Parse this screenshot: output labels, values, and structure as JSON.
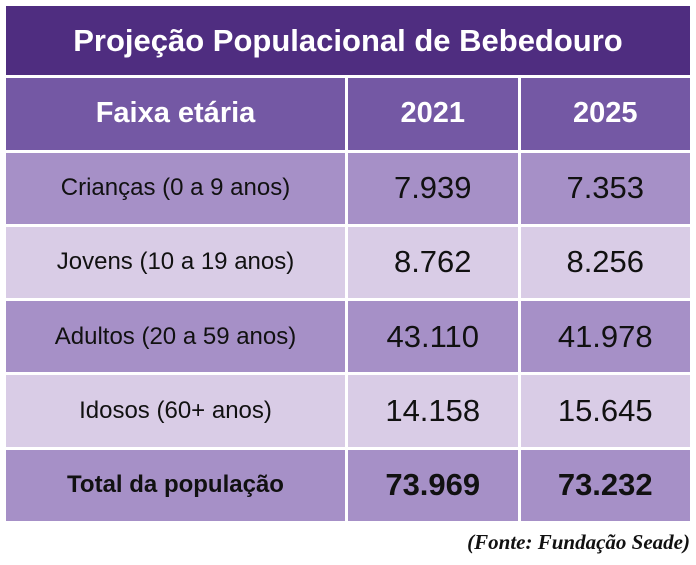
{
  "table": {
    "title": "Projeção Populacional de Bebedouro",
    "headers": [
      "Faixa etária",
      "2021",
      "2025"
    ],
    "rows": [
      [
        "Crianças (0 a 9 anos)",
        "7.939",
        "7.353"
      ],
      [
        "Jovens (10 a 19 anos)",
        "8.762",
        "8.256"
      ],
      [
        "Adultos (20 a 59 anos)",
        "43.110",
        "41.978"
      ],
      [
        "Idosos (60+ anos)",
        "14.158",
        "15.645"
      ]
    ],
    "total": [
      "Total da população",
      "73.969",
      "73.232"
    ]
  },
  "source": "(Fonte: Fundação Seade)",
  "colors": {
    "title_bg": "#4f2d80",
    "header_bg": "#7458a4",
    "row_dark_bg": "#a690c7",
    "row_light_bg": "#d9cce6"
  }
}
